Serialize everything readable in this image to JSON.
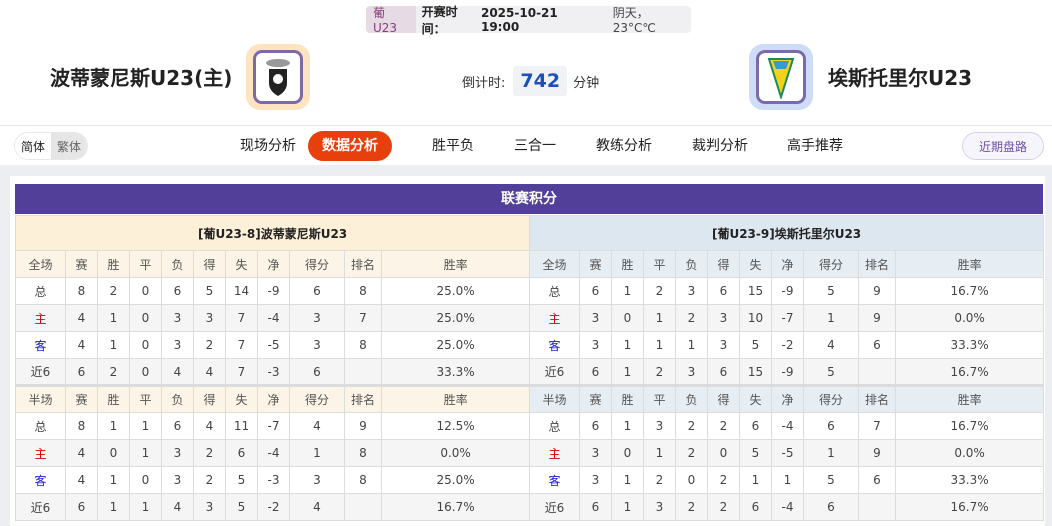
{
  "match_info": {
    "league": "葡U23",
    "kickoff_label": "开赛时间：",
    "kickoff": "2025-10-21 19:00",
    "weather": "阴天，23°C℃"
  },
  "home_team": {
    "name": "波蒂蒙尼斯U23(主)",
    "accent": "#fde3c0"
  },
  "away_team": {
    "name": "埃斯托里尔U23",
    "accent": "#cfdcf8"
  },
  "countdown": {
    "label": "倒计时:",
    "value": "742",
    "unit": "分钟"
  },
  "lang": {
    "simplified": "简体",
    "traditional": "繁体"
  },
  "nav": {
    "items": [
      {
        "label": "现场分析"
      },
      {
        "label": "数据分析",
        "active": true
      },
      {
        "label": "胜平负"
      },
      {
        "label": "三合一"
      },
      {
        "label": "教练分析"
      },
      {
        "label": "裁判分析"
      },
      {
        "label": "高手推荐"
      }
    ],
    "recent": "近期盘路"
  },
  "section_title": "联赛积分",
  "columns": [
    "赛",
    "胜",
    "平",
    "负",
    "得",
    "失",
    "净",
    "得分",
    "排名",
    "胜率"
  ],
  "tables": [
    {
      "title": "[葡U23-8]波蒂蒙尼斯U23",
      "full": {
        "label": "全场",
        "rows": [
          [
            "总",
            "8",
            "2",
            "0",
            "6",
            "5",
            "14",
            "-9",
            "6",
            "8",
            "25.0%"
          ],
          [
            "主",
            "4",
            "1",
            "0",
            "3",
            "3",
            "7",
            "-4",
            "3",
            "7",
            "25.0%"
          ],
          [
            "客",
            "4",
            "1",
            "0",
            "3",
            "2",
            "7",
            "-5",
            "3",
            "8",
            "25.0%"
          ],
          [
            "近6",
            "6",
            "2",
            "0",
            "4",
            "4",
            "7",
            "-3",
            "6",
            "",
            "33.3%"
          ]
        ]
      },
      "half": {
        "label": "半场",
        "rows": [
          [
            "总",
            "8",
            "1",
            "1",
            "6",
            "4",
            "11",
            "-7",
            "4",
            "9",
            "12.5%"
          ],
          [
            "主",
            "4",
            "0",
            "1",
            "3",
            "2",
            "6",
            "-4",
            "1",
            "8",
            "0.0%"
          ],
          [
            "客",
            "4",
            "1",
            "0",
            "3",
            "2",
            "5",
            "-3",
            "3",
            "8",
            "25.0%"
          ],
          [
            "近6",
            "6",
            "1",
            "1",
            "4",
            "3",
            "5",
            "-2",
            "4",
            "",
            "16.7%"
          ]
        ]
      }
    },
    {
      "title": "[葡U23-9]埃斯托里尔U23",
      "full": {
        "label": "全场",
        "rows": [
          [
            "总",
            "6",
            "1",
            "2",
            "3",
            "6",
            "15",
            "-9",
            "5",
            "9",
            "16.7%"
          ],
          [
            "主",
            "3",
            "0",
            "1",
            "2",
            "3",
            "10",
            "-7",
            "1",
            "9",
            "0.0%"
          ],
          [
            "客",
            "3",
            "1",
            "1",
            "1",
            "3",
            "5",
            "-2",
            "4",
            "6",
            "33.3%"
          ],
          [
            "近6",
            "6",
            "1",
            "2",
            "3",
            "6",
            "15",
            "-9",
            "5",
            "",
            "16.7%"
          ]
        ]
      },
      "half": {
        "label": "半场",
        "rows": [
          [
            "总",
            "6",
            "1",
            "3",
            "2",
            "2",
            "6",
            "-4",
            "6",
            "7",
            "16.7%"
          ],
          [
            "主",
            "3",
            "0",
            "1",
            "2",
            "0",
            "5",
            "-5",
            "1",
            "9",
            "0.0%"
          ],
          [
            "客",
            "3",
            "1",
            "2",
            "0",
            "2",
            "1",
            "1",
            "5",
            "6",
            "33.3%"
          ],
          [
            "近6",
            "6",
            "1",
            "3",
            "2",
            "2",
            "6",
            "-4",
            "6",
            "",
            "16.7%"
          ]
        ]
      }
    }
  ]
}
